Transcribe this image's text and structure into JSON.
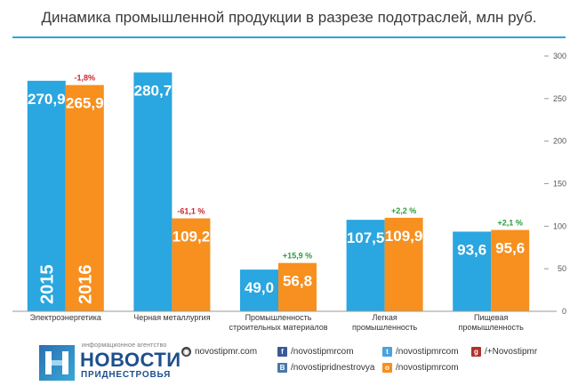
{
  "title": "Динамика промышленной продукции в разрезе подотраслей, млн руб.",
  "colors": {
    "blue": "#2aa6e0",
    "orange": "#f7901e",
    "negative": "#d0232a",
    "positive": "#2a9d3c",
    "accent": "#2aa6d9"
  },
  "chart_data": {
    "type": "bar",
    "categories": [
      [
        "Электроэнергетика"
      ],
      [
        "Черная металлургия"
      ],
      [
        "Промышленность",
        "строительных материалов"
      ],
      [
        "Легкая",
        "промышленность"
      ],
      [
        "Пищевая",
        "промышленность"
      ]
    ],
    "series": [
      {
        "name": "2015",
        "values": [
          270.9,
          280.7,
          49.0,
          107.5,
          93.6
        ],
        "labels": [
          "270,9",
          "280,7",
          "49,0",
          "107,5",
          "93,6"
        ]
      },
      {
        "name": "2016",
        "values": [
          265.9,
          109.2,
          56.8,
          109.9,
          95.6
        ],
        "labels": [
          "265,9",
          "109,2",
          "56,8",
          "109,9",
          "95,6"
        ]
      }
    ],
    "changes": [
      "-1,8%",
      "-61,1 %",
      "+15,9 %",
      "+2,2 %",
      "+2,1 %"
    ],
    "ylim": [
      0,
      300
    ],
    "yticks": [
      0,
      50,
      100,
      150,
      200,
      250,
      300
    ],
    "y_axis_side": "right",
    "grid": false
  },
  "footer": {
    "logo_small": "информационное агентство",
    "logo_big": "НОВОСТИ",
    "logo_sub": "ПРИДНЕСТРОВЬЯ",
    "site": "novostipmr.com",
    "facebook": "/novostipmrcom",
    "vk": "/novostipridnestrovya",
    "twitter": "/novostipmrcom",
    "odnoklassniki": "/novostipmrcom",
    "gplus": "/+Novostipmr"
  }
}
